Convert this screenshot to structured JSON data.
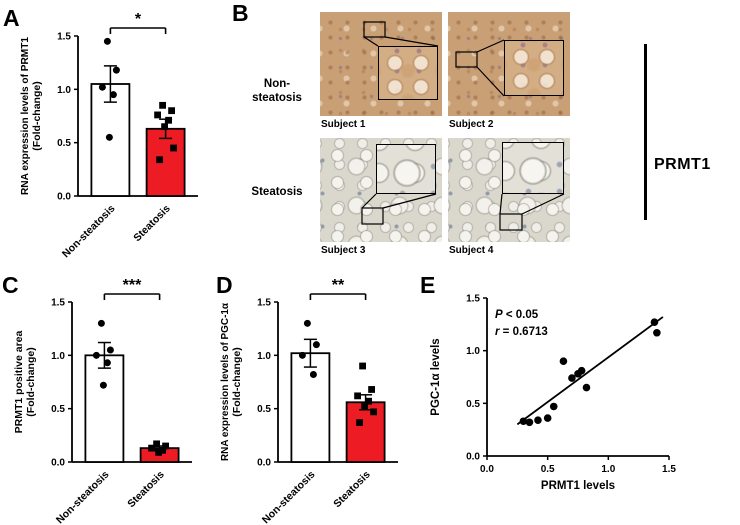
{
  "panel_labels": {
    "A": "A",
    "B": "B",
    "C": "C",
    "D": "D",
    "E": "E"
  },
  "panel_b": {
    "row_labels": [
      "Non-steatosis",
      "Steatosis"
    ],
    "subjects": [
      "Subject 1",
      "Subject 2",
      "Subject 3",
      "Subject 4"
    ],
    "side_label": "PRMT1"
  },
  "colors": {
    "control_bar": "#ffffff",
    "steatosis_bar": "#ed1c24",
    "points": "#000000",
    "axis": "#000000"
  },
  "chart_data": [
    {
      "id": "A",
      "type": "bar",
      "ylabel_line1": "RNA expression levels of PRMT1",
      "ylabel_line2": "(Fold-change)",
      "categories": [
        "Non-steatosis",
        "Steatosis"
      ],
      "values": [
        1.05,
        0.63
      ],
      "errors": [
        0.17,
        0.09
      ],
      "bar_colors": [
        "#ffffff",
        "#ed1c24"
      ],
      "markers": [
        "circle",
        "square"
      ],
      "points": [
        [
          1.45,
          1.18,
          1.02,
          0.95,
          0.55
        ],
        [
          0.85,
          0.8,
          0.76,
          0.71,
          0.65,
          0.45,
          0.34
        ]
      ],
      "significance": "*",
      "ylim": [
        0,
        1.5
      ],
      "yticks": [
        "0.0",
        "0.5",
        "1.0",
        "1.5"
      ]
    },
    {
      "id": "C",
      "type": "bar",
      "ylabel_line1": "PRMT1 positive area",
      "ylabel_line2": "(Fold-change)",
      "categories": [
        "Non-steatosis",
        "Steatosis"
      ],
      "values": [
        1.0,
        0.13
      ],
      "errors": [
        0.12,
        0.02
      ],
      "bar_colors": [
        "#ffffff",
        "#ed1c24"
      ],
      "markers": [
        "circle",
        "square"
      ],
      "points": [
        [
          1.3,
          1.05,
          1.0,
          0.93,
          0.72
        ],
        [
          0.17,
          0.15,
          0.13,
          0.11,
          0.09
        ]
      ],
      "significance": "***",
      "ylim": [
        0,
        1.5
      ],
      "yticks": [
        "0.0",
        "0.5",
        "1.0",
        "1.5"
      ]
    },
    {
      "id": "D",
      "type": "bar",
      "ylabel_line1": "RNA expression levels of PGC-1α",
      "ylabel_line2": "(Fold-change)",
      "categories": [
        "Non-steatosis",
        "Steatosis"
      ],
      "values": [
        1.02,
        0.56
      ],
      "errors": [
        0.13,
        0.07
      ],
      "bar_colors": [
        "#ffffff",
        "#ed1c24"
      ],
      "markers": [
        "circle",
        "square"
      ],
      "points": [
        [
          1.3,
          1.1,
          1.0,
          0.82
        ],
        [
          0.9,
          0.68,
          0.62,
          0.57,
          0.52,
          0.47,
          0.37
        ]
      ],
      "significance": "**",
      "ylim": [
        0,
        1.5
      ],
      "yticks": [
        "0.0",
        "0.5",
        "1.0",
        "1.5"
      ]
    },
    {
      "id": "E",
      "type": "scatter",
      "xlabel": "PRMT1 levels",
      "ylabel": "PGC-1α levels",
      "xlim": [
        0,
        1.5
      ],
      "ylim": [
        0,
        1.5
      ],
      "xticks": [
        "0.0",
        "0.5",
        "1.0",
        "1.5"
      ],
      "yticks": [
        "0.0",
        "0.5",
        "1.0",
        "1.5"
      ],
      "annotation_p": "P < 0.05",
      "annotation_r": "r = 0.6713",
      "points": [
        [
          0.3,
          0.33
        ],
        [
          0.35,
          0.32
        ],
        [
          0.42,
          0.34
        ],
        [
          0.5,
          0.36
        ],
        [
          0.55,
          0.47
        ],
        [
          0.63,
          0.9
        ],
        [
          0.7,
          0.74
        ],
        [
          0.75,
          0.78
        ],
        [
          0.78,
          0.81
        ],
        [
          0.82,
          0.65
        ],
        [
          1.38,
          1.27
        ],
        [
          1.4,
          1.17
        ]
      ],
      "regression": {
        "x1": 0.25,
        "y1": 0.3,
        "x2": 1.45,
        "y2": 1.32
      }
    }
  ]
}
